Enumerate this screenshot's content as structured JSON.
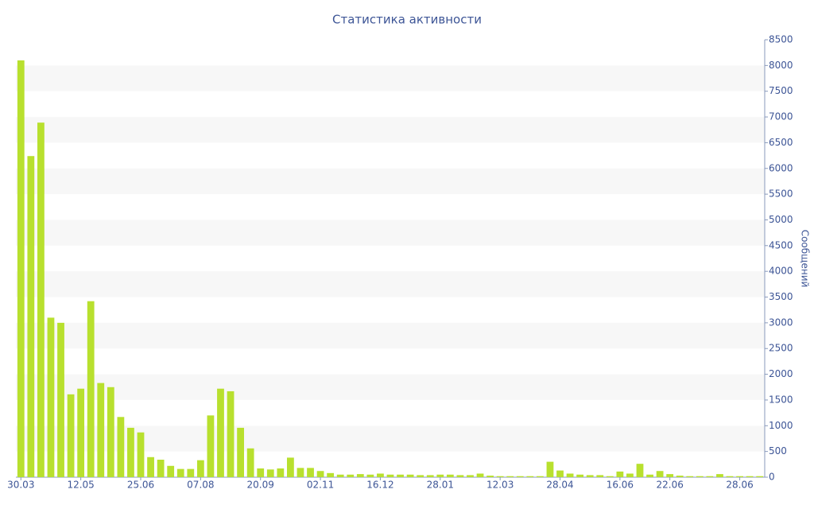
{
  "chart_data": {
    "type": "bar",
    "title": "Статистика активности",
    "y_axis_label": "Сообщений",
    "categories": [
      "30.03",
      null,
      null,
      null,
      null,
      null,
      "12.05",
      null,
      null,
      null,
      null,
      null,
      "25.06",
      null,
      null,
      null,
      null,
      null,
      "07.08",
      null,
      null,
      null,
      null,
      null,
      "20.09",
      null,
      null,
      null,
      null,
      null,
      "02.11",
      null,
      null,
      null,
      null,
      null,
      "16.12",
      null,
      null,
      null,
      null,
      null,
      "28.01",
      null,
      null,
      null,
      null,
      null,
      "12.03",
      null,
      null,
      null,
      null,
      null,
      "28.04",
      null,
      null,
      null,
      null,
      null,
      "16.06",
      null,
      null,
      null,
      null,
      "22.06",
      null,
      null,
      null,
      null,
      null,
      null,
      "28.06",
      null,
      null
    ],
    "values": [
      8100,
      6240,
      6890,
      3100,
      3000,
      1610,
      1720,
      3420,
      1830,
      1750,
      1170,
      960,
      870,
      390,
      340,
      220,
      160,
      160,
      330,
      1200,
      1720,
      1670,
      960,
      560,
      170,
      150,
      170,
      380,
      180,
      180,
      120,
      80,
      50,
      50,
      60,
      50,
      70,
      50,
      50,
      50,
      40,
      40,
      50,
      50,
      40,
      40,
      70,
      30,
      20,
      20,
      20,
      20,
      20,
      300,
      130,
      70,
      50,
      40,
      40,
      20,
      110,
      70,
      260,
      50,
      120,
      60,
      30,
      20,
      20,
      20,
      60,
      20,
      20,
      20,
      20
    ],
    "color": "#b8e02e",
    "ylim": [
      0,
      8500
    ],
    "yticks": [
      0,
      500,
      1000,
      1500,
      2000,
      2500,
      3000,
      3500,
      4000,
      4500,
      5000,
      5500,
      6000,
      6500,
      7000,
      7500,
      8000,
      8500
    ],
    "y_axis_side": "right",
    "grid": true
  }
}
